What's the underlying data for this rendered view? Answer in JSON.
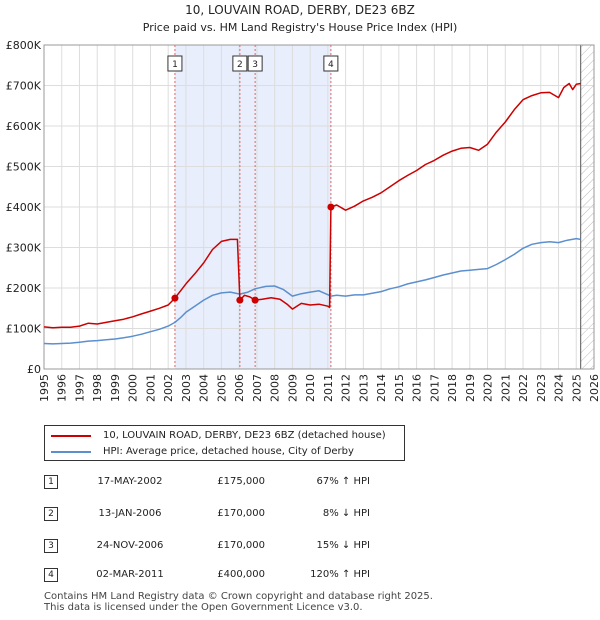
{
  "chart_data": {
    "type": "line",
    "title": "10, LOUVAIN ROAD, DERBY, DE23 6BZ",
    "subtitle": "Price paid vs. HM Land Registry's House Price Index (HPI)",
    "xlabel": "",
    "ylabel": "",
    "xlim": [
      1995,
      2026
    ],
    "ylim": [
      0,
      800000
    ],
    "x_ticks": [
      "1995",
      "1996",
      "1997",
      "1998",
      "1999",
      "2000",
      "2001",
      "2002",
      "2003",
      "2004",
      "2005",
      "2006",
      "2007",
      "2008",
      "2009",
      "2010",
      "2011",
      "2012",
      "2013",
      "2014",
      "2015",
      "2016",
      "2017",
      "2018",
      "2019",
      "2020",
      "2021",
      "2022",
      "2023",
      "2024",
      "2025",
      "2026"
    ],
    "y_ticks": [
      {
        "value": 0,
        "label": "£0"
      },
      {
        "value": 100000,
        "label": "£100K"
      },
      {
        "value": 200000,
        "label": "£200K"
      },
      {
        "value": 300000,
        "label": "£300K"
      },
      {
        "value": 400000,
        "label": "£400K"
      },
      {
        "value": 500000,
        "label": "£500K"
      },
      {
        "value": 600000,
        "label": "£600K"
      },
      {
        "value": 700000,
        "label": "£700K"
      },
      {
        "value": 800000,
        "label": "£800K"
      }
    ],
    "grid": true,
    "shaded_spans": [
      [
        2002.38,
        2011.17
      ]
    ],
    "future_from": 2025.25,
    "series": [
      {
        "name": "10, LOUVAIN ROAD, DERBY, DE23 6BZ (detached house)",
        "color": "#cc0000",
        "points": [
          [
            1995.0,
            104000
          ],
          [
            1995.5,
            102000
          ],
          [
            1996.0,
            103000
          ],
          [
            1996.5,
            103000
          ],
          [
            1997.0,
            106000
          ],
          [
            1997.5,
            113000
          ],
          [
            1998.0,
            111000
          ],
          [
            1998.5,
            115000
          ],
          [
            1999.0,
            119000
          ],
          [
            1999.5,
            123000
          ],
          [
            2000.0,
            129000
          ],
          [
            2000.5,
            136000
          ],
          [
            2001.0,
            143000
          ],
          [
            2001.5,
            150000
          ],
          [
            2002.0,
            158000
          ],
          [
            2002.38,
            175000
          ],
          [
            2002.7,
            193000
          ],
          [
            2003.0,
            210000
          ],
          [
            2003.5,
            235000
          ],
          [
            2004.0,
            262000
          ],
          [
            2004.5,
            295000
          ],
          [
            2005.0,
            315000
          ],
          [
            2005.5,
            320000
          ],
          [
            2005.9,
            320000
          ],
          [
            2006.04,
            170000
          ],
          [
            2006.3,
            182000
          ],
          [
            2006.6,
            178000
          ],
          [
            2006.9,
            170000
          ],
          [
            2007.3,
            172000
          ],
          [
            2007.8,
            176000
          ],
          [
            2008.3,
            172000
          ],
          [
            2008.7,
            160000
          ],
          [
            2009.0,
            148000
          ],
          [
            2009.5,
            162000
          ],
          [
            2010.0,
            158000
          ],
          [
            2010.5,
            160000
          ],
          [
            2011.0,
            155000
          ],
          [
            2011.1,
            152000
          ],
          [
            2011.17,
            400000
          ],
          [
            2011.5,
            405000
          ],
          [
            2012.0,
            392000
          ],
          [
            2012.5,
            402000
          ],
          [
            2013.0,
            415000
          ],
          [
            2013.5,
            424000
          ],
          [
            2014.0,
            435000
          ],
          [
            2014.5,
            450000
          ],
          [
            2015.0,
            465000
          ],
          [
            2015.5,
            478000
          ],
          [
            2016.0,
            490000
          ],
          [
            2016.5,
            505000
          ],
          [
            2017.0,
            515000
          ],
          [
            2017.5,
            528000
          ],
          [
            2018.0,
            538000
          ],
          [
            2018.5,
            545000
          ],
          [
            2019.0,
            547000
          ],
          [
            2019.5,
            540000
          ],
          [
            2020.0,
            555000
          ],
          [
            2020.5,
            585000
          ],
          [
            2021.0,
            610000
          ],
          [
            2021.5,
            640000
          ],
          [
            2022.0,
            665000
          ],
          [
            2022.5,
            675000
          ],
          [
            2023.0,
            682000
          ],
          [
            2023.5,
            683000
          ],
          [
            2024.0,
            670000
          ],
          [
            2024.3,
            695000
          ],
          [
            2024.6,
            705000
          ],
          [
            2024.8,
            690000
          ],
          [
            2025.0,
            703000
          ],
          [
            2025.25,
            705000
          ]
        ]
      },
      {
        "name": "HPI: Average price, detached house, City of Derby",
        "color": "#5b8fcf",
        "points": [
          [
            1995.0,
            63000
          ],
          [
            1995.5,
            62000
          ],
          [
            1996.0,
            63000
          ],
          [
            1996.5,
            64000
          ],
          [
            1997.0,
            66000
          ],
          [
            1997.5,
            69000
          ],
          [
            1998.0,
            70000
          ],
          [
            1998.5,
            72000
          ],
          [
            1999.0,
            74000
          ],
          [
            1999.5,
            77000
          ],
          [
            2000.0,
            81000
          ],
          [
            2000.5,
            86000
          ],
          [
            2001.0,
            92000
          ],
          [
            2001.5,
            98000
          ],
          [
            2002.0,
            106000
          ],
          [
            2002.38,
            115000
          ],
          [
            2002.7,
            127000
          ],
          [
            2003.0,
            140000
          ],
          [
            2003.5,
            155000
          ],
          [
            2004.0,
            170000
          ],
          [
            2004.5,
            182000
          ],
          [
            2005.0,
            188000
          ],
          [
            2005.5,
            190000
          ],
          [
            2006.04,
            185000
          ],
          [
            2006.5,
            190000
          ],
          [
            2006.9,
            198000
          ],
          [
            2007.5,
            204000
          ],
          [
            2008.0,
            205000
          ],
          [
            2008.5,
            196000
          ],
          [
            2009.0,
            180000
          ],
          [
            2009.5,
            186000
          ],
          [
            2010.0,
            190000
          ],
          [
            2010.5,
            193000
          ],
          [
            2011.17,
            180000
          ],
          [
            2011.5,
            182000
          ],
          [
            2012.0,
            180000
          ],
          [
            2012.5,
            183000
          ],
          [
            2013.0,
            183000
          ],
          [
            2013.5,
            187000
          ],
          [
            2014.0,
            191000
          ],
          [
            2014.5,
            198000
          ],
          [
            2015.0,
            203000
          ],
          [
            2015.5,
            210000
          ],
          [
            2016.0,
            215000
          ],
          [
            2016.5,
            220000
          ],
          [
            2017.0,
            226000
          ],
          [
            2017.5,
            232000
          ],
          [
            2018.0,
            237000
          ],
          [
            2018.5,
            242000
          ],
          [
            2019.0,
            244000
          ],
          [
            2019.5,
            246000
          ],
          [
            2020.0,
            248000
          ],
          [
            2020.5,
            258000
          ],
          [
            2021.0,
            270000
          ],
          [
            2021.5,
            283000
          ],
          [
            2022.0,
            298000
          ],
          [
            2022.5,
            308000
          ],
          [
            2023.0,
            312000
          ],
          [
            2023.5,
            314000
          ],
          [
            2024.0,
            312000
          ],
          [
            2024.5,
            318000
          ],
          [
            2025.0,
            322000
          ],
          [
            2025.25,
            320000
          ]
        ]
      }
    ],
    "sales": [
      {
        "label": "1",
        "year": 2002.38,
        "value": 175000
      },
      {
        "label": "2",
        "year": 2006.04,
        "value": 170000
      },
      {
        "label": "3",
        "year": 2006.9,
        "value": 170000
      },
      {
        "label": "4",
        "year": 2011.17,
        "value": 400000
      }
    ]
  },
  "legend": {
    "items": [
      {
        "label": "10, LOUVAIN ROAD, DERBY, DE23 6BZ (detached house)",
        "color": "#cc0000"
      },
      {
        "label": "HPI: Average price, detached house, City of Derby",
        "color": "#5b8fcf"
      }
    ]
  },
  "sales_table": [
    {
      "badge": "1",
      "date": "17-MAY-2002",
      "price": "£175,000",
      "hpi": "67% ↑ HPI"
    },
    {
      "badge": "2",
      "date": "13-JAN-2006",
      "price": "£170,000",
      "hpi": "8% ↓ HPI"
    },
    {
      "badge": "3",
      "date": "24-NOV-2006",
      "price": "£170,000",
      "hpi": "15% ↓ HPI"
    },
    {
      "badge": "4",
      "date": "02-MAR-2011",
      "price": "£400,000",
      "hpi": "120% ↑ HPI"
    }
  ],
  "footer": {
    "line1": "Contains HM Land Registry data © Crown copyright and database right 2025.",
    "line2": "This data is licensed under the Open Government Licence v3.0."
  }
}
